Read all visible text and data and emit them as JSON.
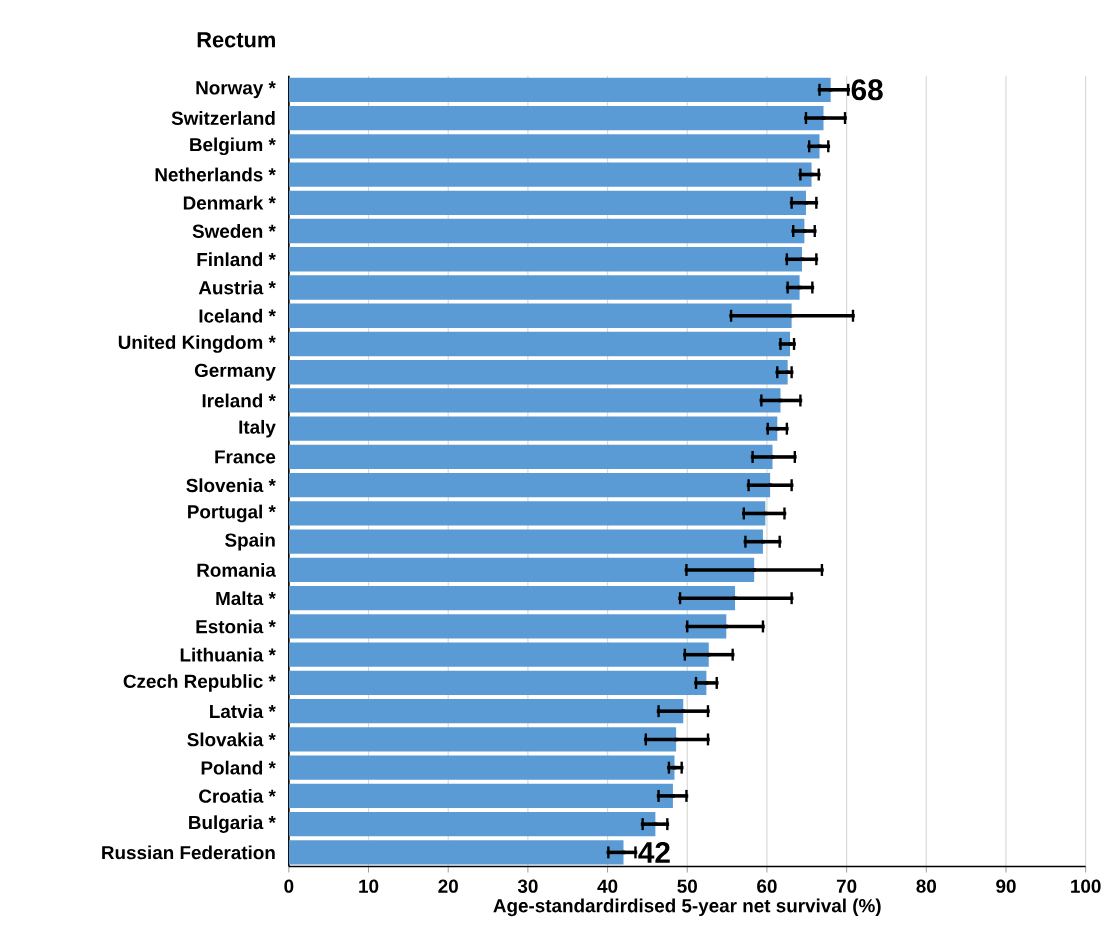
{
  "chart_data": {
    "type": "bar",
    "orientation": "horizontal",
    "title": "Rectum",
    "xlabel": "Age-standardirdised 5-year net survival (%)",
    "categories": [
      "Norway *",
      "Switzerland",
      "Belgium *",
      "Netherlands *",
      "Denmark *",
      "Sweden *",
      "Finland *",
      "Austria *",
      "Iceland *",
      "United Kingdom *",
      "Germany",
      "Ireland *",
      "Italy",
      "France",
      "Slovenia *",
      "Portugal *",
      "Spain",
      "Romania",
      "Malta *",
      "Estonia *",
      "Lithuania *",
      "Czech Republic *",
      "Latvia *",
      "Slovakia *",
      "Poland *",
      "Croatia *",
      "Bulgaria *",
      "Russian Federation"
    ],
    "values": [
      68,
      67.1,
      66.6,
      65.6,
      64.9,
      64.7,
      64.4,
      64.1,
      63.1,
      62.9,
      62.6,
      61.7,
      61.3,
      60.7,
      60.4,
      59.8,
      59.5,
      58.4,
      56.0,
      54.9,
      52.7,
      52.4,
      49.5,
      48.6,
      48.4,
      48.2,
      46.0,
      42
    ],
    "errors": [
      [
        66.6,
        70.2
      ],
      [
        64.9,
        69.8
      ],
      [
        65.3,
        67.7
      ],
      [
        64.2,
        66.5
      ],
      [
        63.1,
        66.2
      ],
      [
        63.3,
        66.0
      ],
      [
        62.5,
        66.2
      ],
      [
        62.6,
        65.7
      ],
      [
        55.5,
        70.8
      ],
      [
        61.7,
        63.4
      ],
      [
        61.3,
        63.1
      ],
      [
        59.3,
        64.2
      ],
      [
        60.1,
        62.5
      ],
      [
        58.2,
        63.5
      ],
      [
        57.7,
        63.1
      ],
      [
        57.1,
        62.2
      ],
      [
        57.3,
        61.6
      ],
      [
        49.9,
        66.9
      ],
      [
        49.1,
        63.1
      ],
      [
        50.0,
        59.5
      ],
      [
        49.7,
        55.7
      ],
      [
        51.1,
        53.7
      ],
      [
        46.4,
        52.6
      ],
      [
        44.8,
        52.6
      ],
      [
        47.7,
        49.3
      ],
      [
        46.4,
        49.9
      ],
      [
        44.4,
        47.5
      ],
      [
        40.1,
        43.5
      ]
    ],
    "value_labels": [
      "68",
      null,
      null,
      null,
      null,
      null,
      null,
      null,
      null,
      null,
      null,
      null,
      null,
      null,
      null,
      null,
      null,
      null,
      null,
      null,
      null,
      null,
      null,
      null,
      null,
      null,
      null,
      "42"
    ],
    "color": "#5b9bd5",
    "xlim": [
      0,
      100
    ],
    "xticks": [
      0,
      10,
      20,
      30,
      40,
      50,
      60,
      70,
      80,
      90,
      100
    ],
    "grid": "x"
  }
}
